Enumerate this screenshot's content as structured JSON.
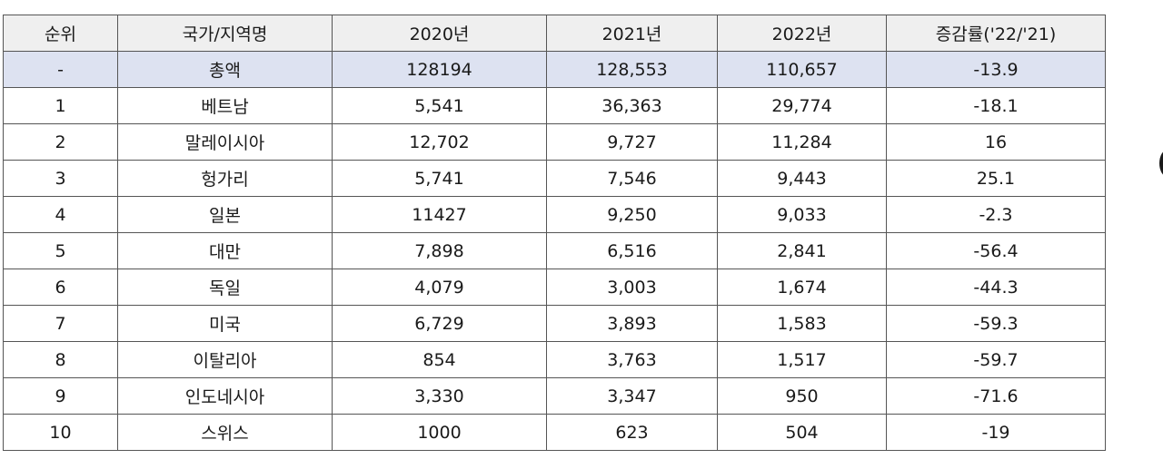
{
  "table": {
    "headers": [
      "순위",
      "국가/지역명",
      "2020년",
      "2021년",
      "2022년",
      "증감률('22/'21)"
    ],
    "total": [
      "-",
      "총액",
      "128194",
      "128,553",
      "110,657",
      "-13.9"
    ],
    "rows": [
      [
        "1",
        "베트남",
        "5,541",
        "36,363",
        "29,774",
        "-18.1"
      ],
      [
        "2",
        "말레이시아",
        "12,702",
        "9,727",
        "11,284",
        "16"
      ],
      [
        "3",
        "헝가리",
        "5,741",
        "7,546",
        "9,443",
        "25.1"
      ],
      [
        "4",
        "일본",
        "11427",
        "9,250",
        "9,033",
        "-2.3"
      ],
      [
        "5",
        "대만",
        "7,898",
        "6,516",
        "2,841",
        "-56.4"
      ],
      [
        "6",
        "독일",
        "4,079",
        "3,003",
        "1,674",
        "-44.3"
      ],
      [
        "7",
        "미국",
        "6,729",
        "3,893",
        "1,583",
        "-59.3"
      ],
      [
        "8",
        "이탈리아",
        "854",
        "3,763",
        "1,517",
        "-59.7"
      ],
      [
        "9",
        "인도네시아",
        "3,330",
        "3,347",
        "950",
        "-71.6"
      ],
      [
        "10",
        "스위스",
        "1000",
        "623",
        "504",
        "-19"
      ]
    ]
  },
  "colors": {
    "header_bg": "#efefef",
    "total_bg": "#dde2f1",
    "border": "#555555"
  }
}
